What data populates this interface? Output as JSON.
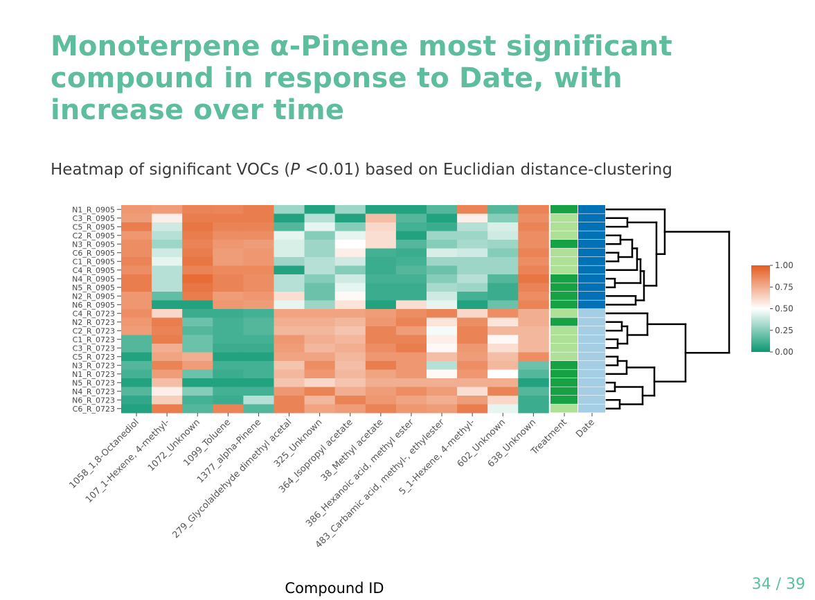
{
  "slide": {
    "title": "Monoterpene α-Pinene most significant compound in response to Date, with increase over time",
    "subtitle_prefix": "Heatmap of significant VOCs (",
    "subtitle_p": "P",
    "subtitle_suffix": " <0.01) based on Euclidian distance-clustering",
    "page_current": "34",
    "page_sep": "/",
    "page_total": "39"
  },
  "chart_data": {
    "type": "heatmap",
    "xlabel": "Compound ID",
    "rows": [
      "N1_R_0905",
      "C3_R_0905",
      "C5_R_0905",
      "C2_R_0905",
      "N3_R_0905",
      "C6_R_0905",
      "C1_R_0905",
      "C4_R_0905",
      "N4_R_0905",
      "N5_R_0905",
      "N2_R_0905",
      "N6_R_0905",
      "C4_R_0723",
      "N2_R_0723",
      "C2_R_0723",
      "C1_R_0723",
      "C3_R_0723",
      "C5_R_0723",
      "N3_R_0723",
      "N1_R_0723",
      "N5_R_0723",
      "N4_R_0723",
      "N6_R_0723",
      "C6_R_0723"
    ],
    "columns": [
      "1058_1,8-Octanediol",
      "107_1-Hexene, 4-methyl-",
      "1072_Unknown",
      "1099_Toluene",
      "1377_alpha-Pinene",
      "279_Glycolaldehyde dimethyl acetal",
      "325_Unknown",
      "364_Isopropyl acetate",
      "38_Methyl acetate",
      "386_Hexanoic acid, methyl ester",
      "483_Carbamic acid, methyl-, ethylester",
      "5_1-Hexene, 4-methyl-",
      "602_Unknown",
      "638_Unknown"
    ],
    "annotation_columns": [
      "Treatment",
      "Date"
    ],
    "values": [
      [
        0.82,
        0.8,
        0.88,
        0.87,
        0.9,
        0.3,
        0.05,
        0.3,
        0.05,
        0.05,
        0.15,
        0.88,
        0.15,
        0.88
      ],
      [
        0.8,
        0.55,
        0.9,
        0.9,
        0.9,
        0.05,
        0.35,
        0.05,
        0.7,
        0.15,
        0.05,
        0.55,
        0.25,
        0.85
      ],
      [
        0.9,
        0.4,
        0.92,
        0.88,
        0.88,
        0.15,
        0.45,
        0.25,
        0.62,
        0.12,
        0.1,
        0.35,
        0.42,
        0.88
      ],
      [
        0.82,
        0.35,
        0.9,
        0.85,
        0.85,
        0.45,
        0.25,
        0.45,
        0.6,
        0.05,
        0.3,
        0.3,
        0.4,
        0.85
      ],
      [
        0.85,
        0.3,
        0.88,
        0.82,
        0.8,
        0.42,
        0.3,
        0.5,
        0.6,
        0.15,
        0.25,
        0.32,
        0.3,
        0.85
      ],
      [
        0.85,
        0.4,
        0.9,
        0.8,
        0.82,
        0.42,
        0.3,
        0.55,
        0.12,
        0.1,
        0.42,
        0.4,
        0.25,
        0.88
      ],
      [
        0.88,
        0.45,
        0.92,
        0.8,
        0.82,
        0.3,
        0.35,
        0.4,
        0.1,
        0.12,
        0.3,
        0.3,
        0.3,
        0.85
      ],
      [
        0.85,
        0.35,
        0.88,
        0.86,
        0.86,
        0.05,
        0.35,
        0.25,
        0.1,
        0.15,
        0.2,
        0.3,
        0.3,
        0.88
      ],
      [
        0.9,
        0.35,
        0.95,
        0.88,
        0.85,
        0.35,
        0.25,
        0.4,
        0.12,
        0.12,
        0.25,
        0.35,
        0.15,
        0.92
      ],
      [
        0.9,
        0.35,
        0.92,
        0.88,
        0.85,
        0.35,
        0.2,
        0.45,
        0.1,
        0.1,
        0.32,
        0.3,
        0.1,
        0.88
      ],
      [
        0.82,
        0.18,
        0.9,
        0.8,
        0.82,
        0.6,
        0.2,
        0.52,
        0.1,
        0.1,
        0.4,
        0.12,
        0.1,
        0.85
      ],
      [
        0.82,
        0.05,
        0.05,
        0.82,
        0.8,
        0.45,
        0.3,
        0.58,
        0.05,
        0.6,
        0.45,
        0.05,
        0.2,
        0.88
      ],
      [
        0.85,
        0.62,
        0.1,
        0.1,
        0.12,
        0.78,
        0.78,
        0.78,
        0.8,
        0.85,
        0.88,
        0.62,
        0.85,
        0.75
      ],
      [
        0.82,
        0.9,
        0.2,
        0.12,
        0.15,
        0.75,
        0.75,
        0.72,
        0.82,
        0.88,
        0.58,
        0.85,
        0.58,
        0.75
      ],
      [
        0.8,
        0.88,
        0.15,
        0.12,
        0.15,
        0.72,
        0.72,
        0.68,
        0.88,
        0.8,
        0.48,
        0.88,
        0.72,
        0.72
      ],
      [
        0.15,
        0.9,
        0.2,
        0.12,
        0.12,
        0.82,
        0.75,
        0.72,
        0.88,
        0.88,
        0.55,
        0.88,
        0.52,
        0.72
      ],
      [
        0.15,
        0.75,
        0.2,
        0.1,
        0.1,
        0.8,
        0.72,
        0.75,
        0.85,
        0.9,
        0.52,
        0.82,
        0.6,
        0.72
      ],
      [
        0.05,
        0.78,
        0.75,
        0.05,
        0.05,
        0.78,
        0.78,
        0.72,
        0.82,
        0.82,
        0.7,
        0.8,
        0.7,
        0.85
      ],
      [
        0.15,
        0.88,
        0.8,
        0.12,
        0.12,
        0.68,
        0.85,
        0.7,
        0.9,
        0.82,
        0.35,
        0.85,
        0.72,
        0.2
      ],
      [
        0.12,
        0.8,
        0.2,
        0.1,
        0.12,
        0.72,
        0.82,
        0.72,
        0.78,
        0.82,
        0.52,
        0.82,
        0.5,
        0.15
      ],
      [
        0.05,
        0.7,
        0.05,
        0.05,
        0.05,
        0.68,
        0.62,
        0.68,
        0.75,
        0.75,
        0.75,
        0.75,
        0.75,
        0.05
      ],
      [
        0.15,
        0.55,
        0.25,
        0.12,
        0.12,
        0.82,
        0.88,
        0.75,
        0.8,
        0.85,
        0.8,
        0.6,
        0.88,
        0.15
      ],
      [
        0.08,
        0.65,
        0.12,
        0.1,
        0.35,
        0.88,
        0.72,
        0.88,
        0.82,
        0.78,
        0.75,
        0.8,
        0.62,
        0.1
      ],
      [
        0.05,
        0.9,
        0.15,
        0.88,
        0.15,
        0.88,
        0.78,
        0.8,
        0.88,
        0.82,
        0.8,
        0.9,
        0.45,
        0.1
      ]
    ],
    "treatment": [
      "N",
      "C",
      "C",
      "C",
      "N",
      "C",
      "C",
      "C",
      "N",
      "N",
      "N",
      "N",
      "C",
      "N",
      "C",
      "C",
      "C",
      "C",
      "N",
      "N",
      "N",
      "N",
      "N",
      "C"
    ],
    "date": [
      "0905",
      "0905",
      "0905",
      "0905",
      "0905",
      "0905",
      "0905",
      "0905",
      "0905",
      "0905",
      "0905",
      "0905",
      "0723",
      "0723",
      "0723",
      "0723",
      "0723",
      "0723",
      "0723",
      "0723",
      "0723",
      "0723",
      "0723",
      "0723"
    ],
    "annotation_colors": {
      "treatment_N": "#17a145",
      "treatment_C": "#aee097",
      "date_0905": "#0371b5",
      "date_0723": "#a5cde4"
    },
    "color_scale": {
      "low": "#0a9872",
      "mid": "#ffffff",
      "high": "#e45c20",
      "range": [
        0,
        1
      ]
    },
    "legend": {
      "ticks": [
        "1.00",
        "0.75",
        "0.50",
        "0.25",
        "0.00"
      ]
    }
  }
}
